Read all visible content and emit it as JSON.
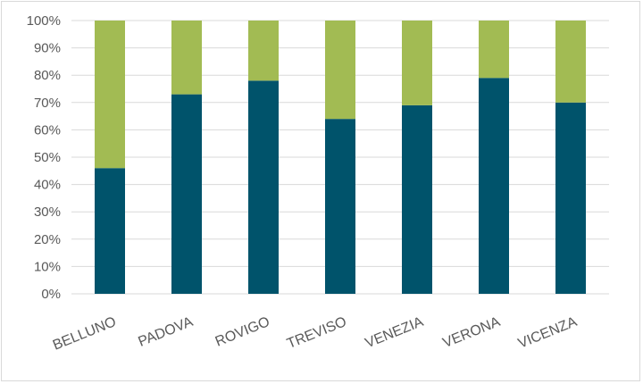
{
  "chart_data": {
    "type": "bar",
    "stacked": true,
    "percent_stacked": true,
    "title": "",
    "xlabel": "",
    "ylabel": "",
    "categories": [
      "BELLUNO",
      "PADOVA",
      "ROVIGO",
      "TREVISO",
      "VENEZIA",
      "VERONA",
      "VICENZA"
    ],
    "series": [
      {
        "color": "#00536b",
        "values": [
          46,
          73,
          78,
          64,
          69,
          79,
          70
        ]
      },
      {
        "color": "#a2bb53",
        "values": [
          54,
          27,
          22,
          36,
          31,
          21,
          30
        ]
      }
    ],
    "ylim": [
      0,
      100
    ],
    "yticks": [
      0,
      10,
      20,
      30,
      40,
      50,
      60,
      70,
      80,
      90,
      100
    ],
    "ytick_labels": [
      "0%",
      "10%",
      "20%",
      "30%",
      "40%",
      "50%",
      "60%",
      "70%",
      "80%",
      "90%",
      "100%"
    ],
    "grid": true,
    "legend": "none"
  }
}
